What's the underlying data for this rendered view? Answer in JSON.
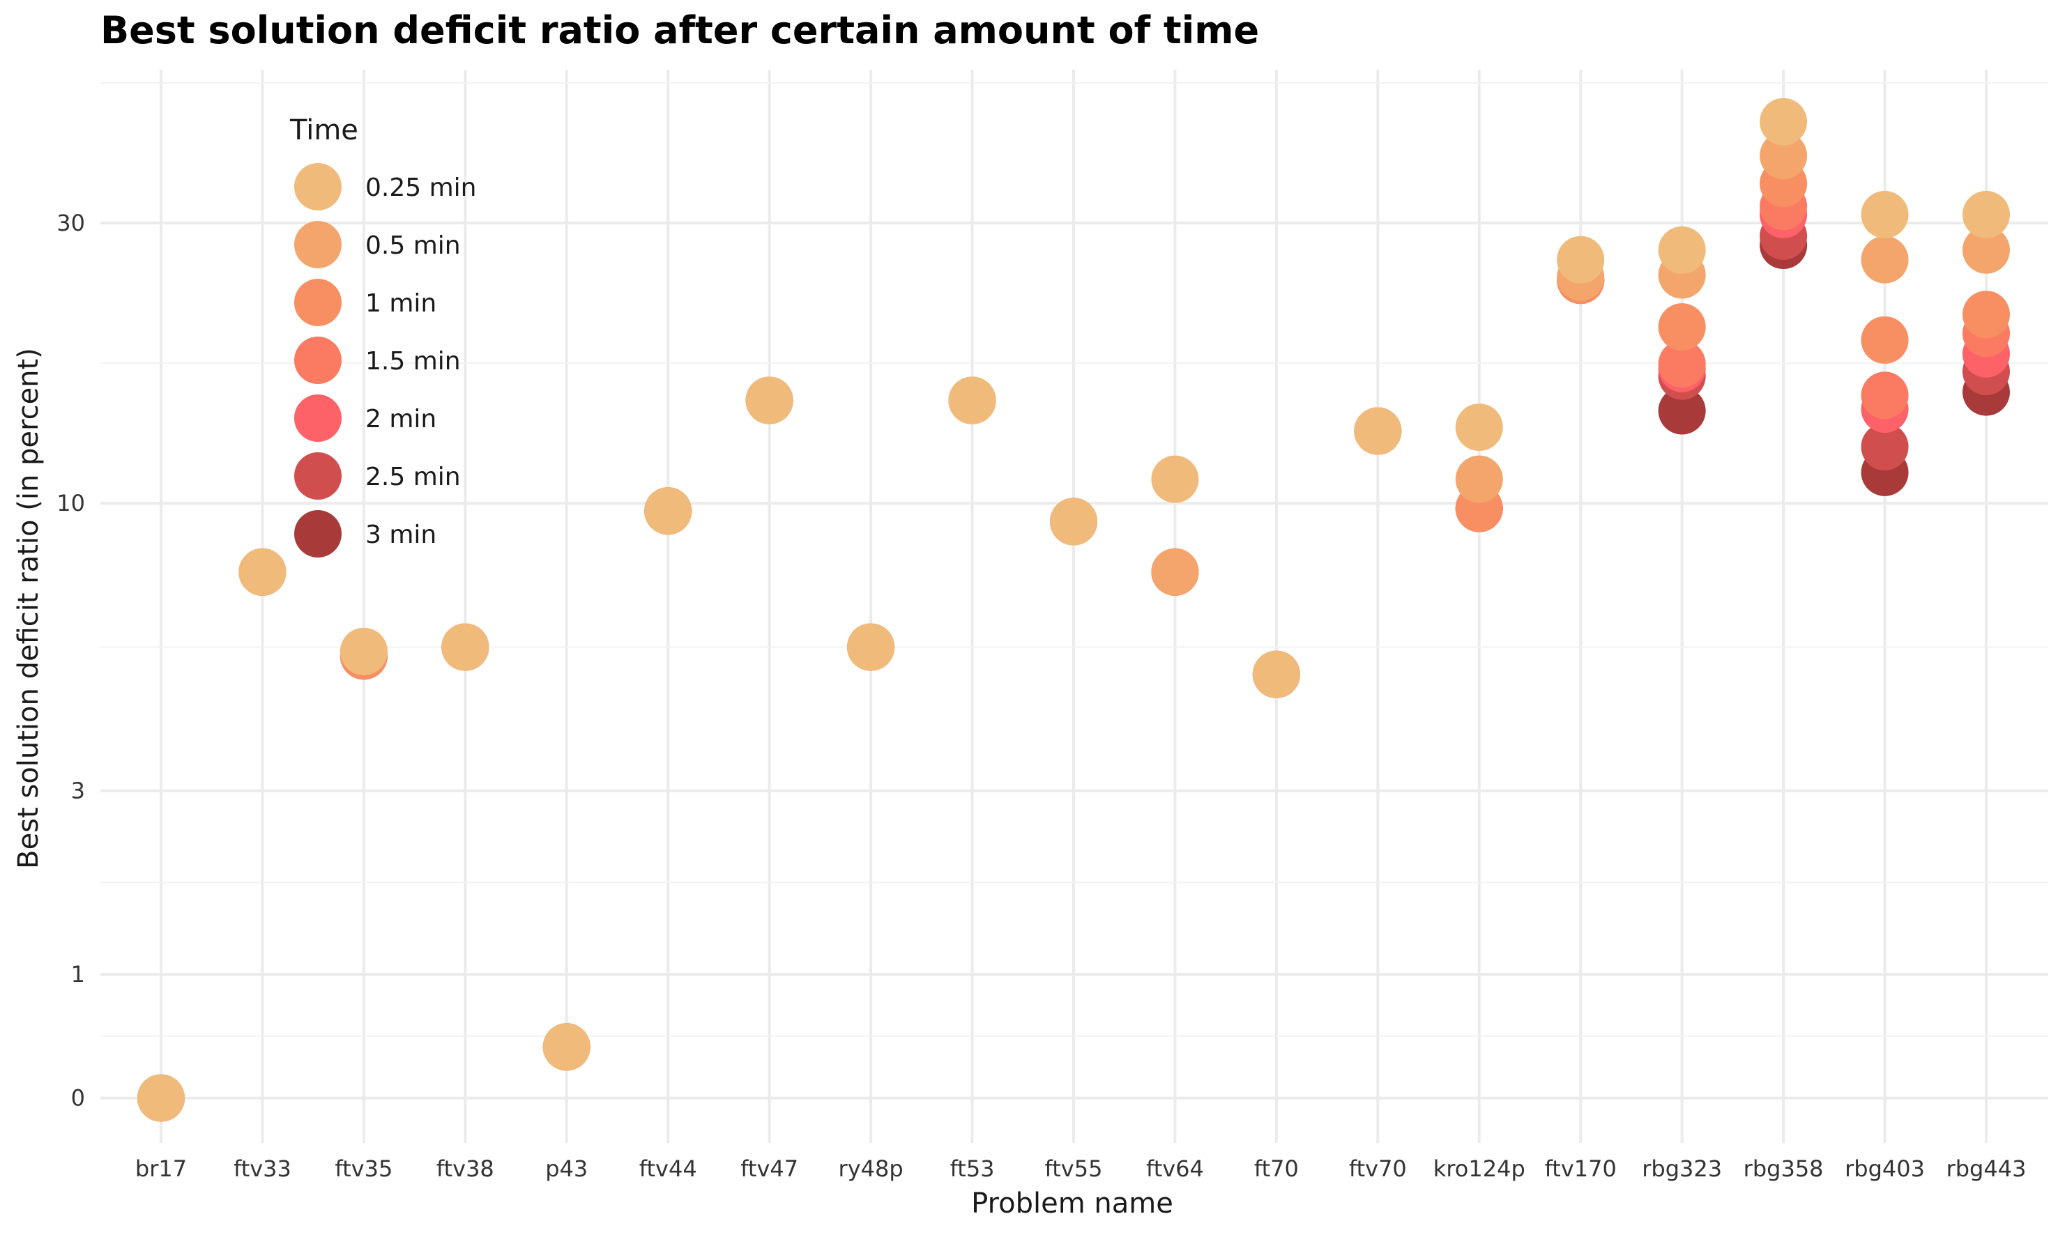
{
  "chart_data": {
    "type": "scatter",
    "title": "Best solution deficit ratio after certain amount of time",
    "xlabel": "Problem name",
    "ylabel": "Best solution deficit ratio (in percent)",
    "y_scale": "pseudo-log",
    "y_ticks": [
      0,
      1,
      3,
      10,
      30
    ],
    "categories": [
      "br17",
      "ftv33",
      "ftv35",
      "ftv38",
      "p43",
      "ftv44",
      "ftv47",
      "ry48p",
      "ft53",
      "ftv55",
      "ftv64",
      "ft70",
      "ftv70",
      "kro124p",
      "ftv170",
      "rbg323",
      "rbg358",
      "rbg403",
      "rbg443"
    ],
    "grid": true,
    "legend": {
      "title": "Time",
      "position": "top-left",
      "entries": [
        {
          "label": "0.25 min",
          "color": "#F0BB7A"
        },
        {
          "label": "0.5 min",
          "color": "#F4A56C"
        },
        {
          "label": "1 min",
          "color": "#F88F62"
        },
        {
          "label": "1.5 min",
          "color": "#FB7A62"
        },
        {
          "label": "2 min",
          "color": "#FC6267"
        },
        {
          "label": "2.5 min",
          "color": "#D14E4E"
        },
        {
          "label": "3 min",
          "color": "#A83A3A"
        }
      ]
    },
    "series": [
      {
        "name": "3 min",
        "values": [
          0,
          7.6,
          5.4,
          5.6,
          0.4,
          9.7,
          15.0,
          5.6,
          15.0,
          9.3,
          7.6,
          5.0,
          13.3,
          9.8,
          24.0,
          14.4,
          27.5,
          11.3,
          15.5
        ]
      },
      {
        "name": "2.5 min",
        "values": [
          0,
          7.6,
          5.4,
          5.6,
          0.4,
          9.7,
          15.0,
          5.6,
          15.0,
          9.3,
          7.6,
          5.0,
          13.3,
          9.8,
          24.0,
          16.5,
          28.5,
          12.5,
          16.8
        ]
      },
      {
        "name": "2 min",
        "values": [
          0,
          7.6,
          5.4,
          5.6,
          0.4,
          9.7,
          15.0,
          5.6,
          15.0,
          9.3,
          7.6,
          5.0,
          13.3,
          9.8,
          24.0,
          17.0,
          31.0,
          14.5,
          18.0
        ]
      },
      {
        "name": "1.5 min",
        "values": [
          0,
          7.6,
          5.4,
          5.6,
          0.4,
          9.7,
          15.0,
          5.6,
          15.0,
          9.3,
          7.6,
          5.0,
          13.3,
          9.8,
          24.0,
          17.3,
          32.0,
          15.3,
          19.5
        ]
      },
      {
        "name": "1 min",
        "values": [
          0,
          7.6,
          5.4,
          5.6,
          0.4,
          9.7,
          15.0,
          5.6,
          15.0,
          9.3,
          7.6,
          5.0,
          13.3,
          9.8,
          24.0,
          20.0,
          35.0,
          19.0,
          21.0
        ]
      },
      {
        "name": "0.5 min",
        "values": [
          0,
          7.6,
          5.5,
          5.6,
          0.4,
          9.7,
          15.0,
          5.6,
          15.0,
          9.3,
          7.6,
          5.0,
          13.3,
          11.0,
          24.3,
          24.5,
          39.0,
          26.0,
          27.0
        ]
      },
      {
        "name": "0.25 min",
        "values": [
          0,
          7.6,
          5.5,
          5.6,
          0.4,
          9.7,
          15.0,
          5.6,
          15.0,
          9.3,
          11.0,
          5.0,
          13.3,
          13.5,
          26.0,
          27.0,
          44.5,
          31.0,
          31.0
        ]
      }
    ]
  }
}
